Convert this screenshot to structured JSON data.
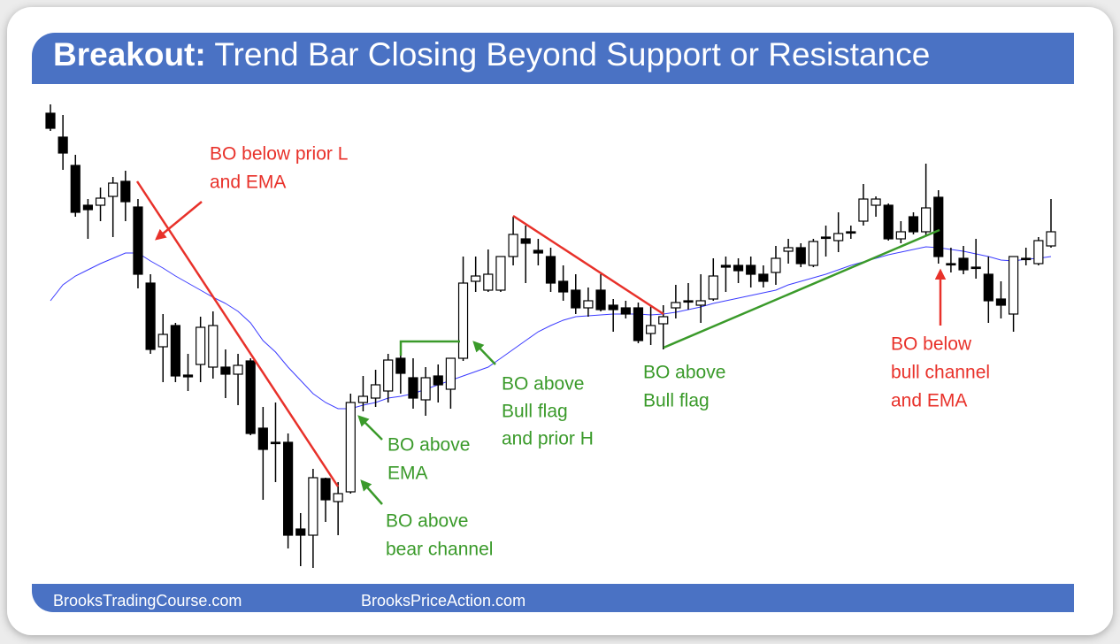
{
  "chart_data": {
    "type": "candlestick",
    "title_bold": "Breakout:",
    "title_rest": "Trend Bar Closing Beyond Support or Resistance",
    "footer_left": "BrooksTradingCourse.com",
    "footer_right": "BrooksPriceAction.com",
    "ylim": [
      50,
      600
    ],
    "up_color": "#ffffff",
    "down_color": "#000000",
    "ema_color": "#3b3bff",
    "open": [
      572,
      545,
      513,
      468,
      468,
      478,
      495,
      466,
      380,
      308,
      332,
      276,
      288,
      285,
      285,
      277,
      292,
      216,
      200,
      200,
      102,
      95,
      159,
      133,
      144,
      245,
      250,
      258,
      295,
      273,
      248,
      275,
      260,
      295,
      382,
      372,
      372,
      410,
      430,
      417,
      410,
      382,
      372,
      352,
      372,
      355,
      352,
      352,
      323,
      334,
      352,
      360,
      355,
      362,
      400,
      400,
      400,
      390,
      392,
      416,
      420,
      400,
      432,
      428,
      438,
      450,
      468,
      468,
      430,
      455,
      438,
      477,
      402,
      408,
      398,
      390,
      362,
      345,
      408,
      402,
      422
    ],
    "high": [
      582,
      570,
      525,
      475,
      488,
      500,
      507,
      475,
      390,
      345,
      335,
      300,
      342,
      348,
      305,
      300,
      295,
      240,
      245,
      210,
      120,
      170,
      160,
      155,
      255,
      275,
      282,
      300,
      298,
      295,
      285,
      288,
      295,
      410,
      410,
      418,
      410,
      455,
      445,
      430,
      420,
      400,
      390,
      375,
      390,
      362,
      360,
      358,
      355,
      355,
      378,
      380,
      390,
      408,
      410,
      408,
      410,
      400,
      422,
      430,
      425,
      430,
      445,
      460,
      445,
      492,
      478,
      470,
      450,
      460,
      515,
      485,
      420,
      422,
      430,
      410,
      382,
      410,
      420,
      432,
      475
    ],
    "low": [
      552,
      508,
      455,
      430,
      450,
      432,
      450,
      374,
      300,
      268,
      268,
      258,
      268,
      272,
      250,
      242,
      208,
      135,
      155,
      80,
      60,
      58,
      110,
      95,
      142,
      235,
      240,
      245,
      255,
      238,
      230,
      245,
      238,
      292,
      370,
      370,
      370,
      400,
      380,
      400,
      370,
      360,
      345,
      342,
      348,
      325,
      340,
      312,
      310,
      305,
      340,
      350,
      335,
      360,
      370,
      380,
      375,
      375,
      378,
      402,
      398,
      398,
      410,
      415,
      430,
      445,
      455,
      428,
      425,
      435,
      434,
      402,
      392,
      390,
      385,
      335,
      340,
      325,
      400,
      400,
      420
    ],
    "close": [
      555,
      527,
      460,
      463,
      476,
      493,
      472,
      390,
      305,
      322,
      275,
      274,
      330,
      332,
      277,
      287,
      210,
      192,
      200,
      95,
      95,
      160,
      135,
      142,
      245,
      252,
      265,
      293,
      278,
      250,
      273,
      265,
      295,
      380,
      388,
      390,
      410,
      435,
      425,
      414,
      380,
      370,
      352,
      360,
      350,
      350,
      345,
      315,
      332,
      342,
      358,
      360,
      360,
      388,
      398,
      394,
      390,
      382,
      408,
      420,
      402,
      427,
      432,
      436,
      437,
      475,
      475,
      430,
      438,
      438,
      465,
      410,
      401,
      395,
      397,
      360,
      355,
      410,
      407,
      428,
      438
    ],
    "ema": [
      360,
      378,
      388,
      395,
      402,
      408,
      414,
      414,
      405,
      397,
      388,
      380,
      372,
      364,
      357,
      348,
      335,
      315,
      302,
      285,
      270,
      255,
      245,
      238,
      238,
      242,
      245,
      250,
      252,
      255,
      260,
      265,
      270,
      275,
      280,
      285,
      295,
      305,
      315,
      325,
      332,
      338,
      342,
      343,
      344,
      345,
      345,
      345,
      344,
      345,
      347,
      350,
      353,
      357,
      360,
      363,
      366,
      369,
      372,
      378,
      382,
      386,
      390,
      395,
      400,
      404,
      408,
      412,
      415,
      418,
      421,
      420,
      418,
      416,
      413,
      410,
      406,
      405,
      407,
      408,
      410
    ],
    "annotations": [
      {
        "lines": [
          "BO below prior L",
          "and EMA"
        ],
        "color": "#e8312a"
      },
      {
        "lines": [
          "BO above",
          "EMA"
        ],
        "color": "#3a9a2a"
      },
      {
        "lines": [
          "BO above",
          "bear channel"
        ],
        "color": "#3a9a2a"
      },
      {
        "lines": [
          "BO above",
          "Bull flag",
          "and prior H"
        ],
        "color": "#3a9a2a"
      },
      {
        "lines": [
          "BO above",
          "Bull flag"
        ],
        "color": "#3a9a2a"
      },
      {
        "lines": [
          "BO below",
          "bull channel",
          "and EMA"
        ],
        "color": "#e8312a"
      }
    ]
  }
}
